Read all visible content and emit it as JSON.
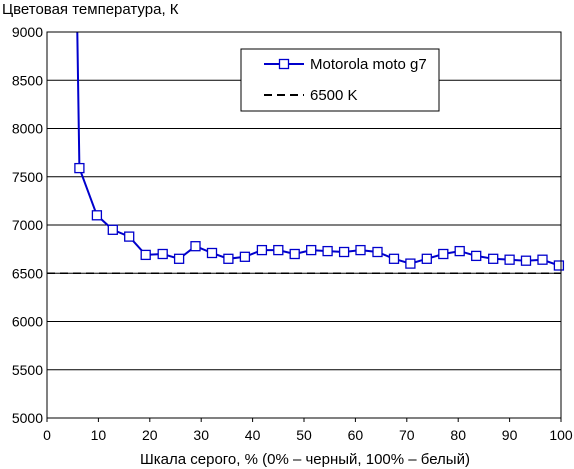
{
  "chart_data": {
    "type": "line",
    "title": "",
    "ylabel": "Цветовая температура, К",
    "xlabel": "Шкала серого, % (0% – черный, 100% – белый)",
    "xlim": [
      0,
      100
    ],
    "ylim": [
      5000,
      9000
    ],
    "xticks": [
      0,
      10,
      20,
      30,
      40,
      50,
      60,
      70,
      80,
      90,
      100
    ],
    "yticks": [
      5000,
      5500,
      6000,
      6500,
      7000,
      7500,
      8000,
      8500,
      9000
    ],
    "grid": "horizontal",
    "legend_position": "top-right",
    "series": [
      {
        "name": "Motorola moto g7",
        "color": "#0000cc",
        "marker": "square",
        "line_start": [
          5.9,
          9000
        ],
        "x": [
          6.3,
          9.7,
          12.8,
          16.0,
          19.2,
          22.5,
          25.7,
          28.9,
          32.1,
          35.3,
          38.5,
          41.8,
          45.0,
          48.2,
          51.4,
          54.6,
          57.8,
          61.0,
          64.3,
          67.5,
          70.7,
          73.9,
          77.1,
          80.3,
          83.5,
          86.8,
          90.0,
          93.2,
          96.4,
          99.6
        ],
        "y": [
          7590,
          7100,
          6950,
          6880,
          6690,
          6700,
          6650,
          6780,
          6710,
          6650,
          6670,
          6740,
          6740,
          6700,
          6740,
          6730,
          6720,
          6740,
          6720,
          6650,
          6600,
          6650,
          6700,
          6730,
          6680,
          6650,
          6640,
          6630,
          6640,
          6580
        ]
      },
      {
        "name": "6500 K",
        "color": "#000000",
        "style": "dashed",
        "x": [
          0,
          100
        ],
        "y": [
          6500,
          6500
        ]
      }
    ]
  }
}
